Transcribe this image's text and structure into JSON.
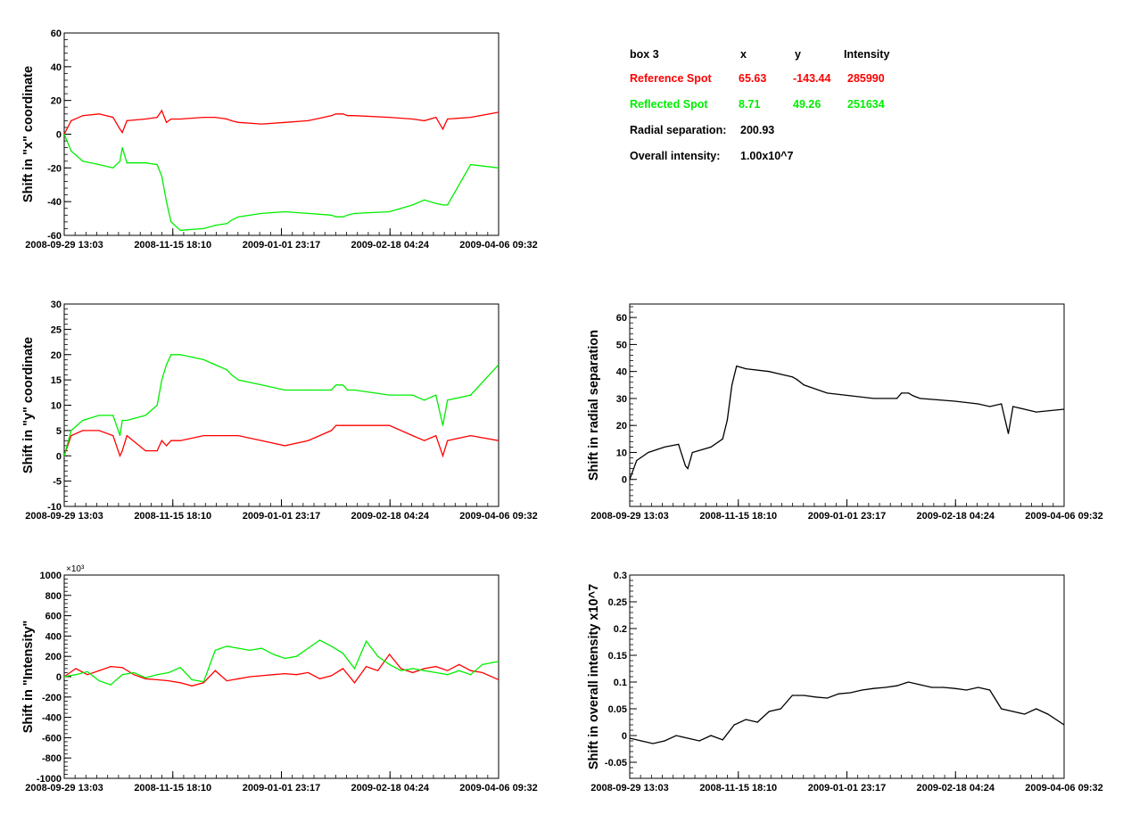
{
  "info_box": {
    "title": "box 3",
    "col_x": "x",
    "col_y": "y",
    "col_intensity": "Intensity",
    "reference": {
      "label": "Reference Spot",
      "x": "65.63",
      "y": "-143.44",
      "intensity": "285990"
    },
    "reflected": {
      "label": "Reflected Spot",
      "x": "8.71",
      "y": "49.26",
      "intensity": "251634"
    },
    "radial_label": "Radial separation:",
    "radial_value": "200.93",
    "overall_label": "Overall intensity:",
    "overall_value": "1.00x10^7"
  },
  "colors": {
    "reference": "#ff0000",
    "reflected": "#00ee00",
    "single": "#000000"
  },
  "chart_data": [
    {
      "id": "x-shift",
      "type": "line",
      "ylabel": "Shift in \"x\" coordinate",
      "ylim": [
        -60,
        60
      ],
      "yticks": [
        -60,
        -40,
        -20,
        0,
        20,
        40,
        60
      ],
      "ytick_labels": [
        "-60",
        "-40",
        "-20",
        "0",
        "20",
        "40",
        "60"
      ],
      "x_dates": [
        "2008-09-29 13:03",
        "2008-11-15 18:10",
        "2009-01-01 23:17",
        "2009-02-18 04:24",
        "2009-04-06 09:32"
      ],
      "x": [
        0,
        3,
        8,
        15,
        21,
        24,
        25,
        27,
        35,
        40,
        42,
        44,
        46,
        50,
        60,
        65,
        70,
        72,
        75,
        85,
        95,
        105,
        115,
        117,
        120,
        122,
        125,
        140,
        150,
        155,
        160,
        163,
        165,
        175,
        187
      ],
      "series": [
        {
          "name": "Reference Spot",
          "color": "#ff0000",
          "values": [
            0,
            8,
            11,
            12,
            10,
            3,
            1,
            8,
            9,
            10,
            14,
            7,
            9,
            9,
            10,
            10,
            9,
            8,
            7,
            6,
            7,
            8,
            11,
            12,
            12,
            11,
            11,
            10,
            9,
            8,
            10,
            3,
            9,
            10,
            13
          ]
        },
        {
          "name": "Reflected Spot",
          "color": "#00ee00",
          "values": [
            0,
            -10,
            -16,
            -18,
            -20,
            -16,
            -8,
            -17,
            -17,
            -18,
            -25,
            -40,
            -52,
            -57,
            -56,
            -54,
            -53,
            -51,
            -49,
            -47,
            -46,
            -47,
            -48,
            -49,
            -49,
            -48,
            -47,
            -46,
            -42,
            -39,
            -41,
            -42,
            -42,
            -18,
            -20
          ]
        }
      ]
    },
    {
      "id": "y-shift",
      "type": "line",
      "ylabel": "Shift in \"y\" coordinate",
      "ylim": [
        -10,
        30
      ],
      "yticks": [
        -10,
        -5,
        0,
        5,
        10,
        15,
        20,
        25,
        30
      ],
      "ytick_labels": [
        "-10",
        "-5",
        "0",
        "5",
        "10",
        "15",
        "20",
        "25",
        "30"
      ],
      "x_dates": [
        "2008-09-29 13:03",
        "2008-11-15 18:10",
        "2009-01-01 23:17",
        "2009-02-18 04:24",
        "2009-04-06 09:32"
      ],
      "x": [
        0,
        3,
        8,
        15,
        21,
        24,
        25,
        27,
        35,
        40,
        42,
        44,
        46,
        50,
        60,
        65,
        70,
        72,
        75,
        85,
        95,
        105,
        115,
        117,
        120,
        122,
        125,
        140,
        150,
        155,
        160,
        163,
        165,
        175,
        187
      ],
      "series": [
        {
          "name": "Reference Spot",
          "color": "#ff0000",
          "values": [
            0,
            4,
            5,
            5,
            4,
            0,
            1,
            4,
            1,
            1,
            3,
            2,
            3,
            3,
            4,
            4,
            4,
            4,
            4,
            3,
            2,
            3,
            5,
            6,
            6,
            6,
            6,
            6,
            4,
            3,
            4,
            0,
            3,
            4,
            3
          ]
        },
        {
          "name": "Reflected Spot",
          "color": "#00ee00",
          "values": [
            0,
            5,
            7,
            8,
            8,
            4,
            7,
            7,
            8,
            10,
            15,
            18,
            20,
            20,
            19,
            18,
            17,
            16,
            15,
            14,
            13,
            13,
            13,
            14,
            14,
            13,
            13,
            12,
            12,
            11,
            12,
            6,
            11,
            12,
            18
          ]
        }
      ]
    },
    {
      "id": "intensity-shift",
      "type": "line",
      "ylabel": "Shift in \"Intensity\"",
      "exponent": "×10³",
      "ylim": [
        -1000,
        1000
      ],
      "yticks": [
        -1000,
        -800,
        -600,
        -400,
        -200,
        0,
        200,
        400,
        600,
        800,
        1000
      ],
      "ytick_labels": [
        "-1000",
        "-800",
        "-600",
        "-400",
        "-200",
        "0",
        "200",
        "400",
        "600",
        "800",
        "1000"
      ],
      "x_dates": [
        "2008-09-29 13:03",
        "2008-11-15 18:10",
        "2009-01-01 23:17",
        "2009-02-18 04:24",
        "2009-04-06 09:32"
      ],
      "x": [
        0,
        5,
        10,
        15,
        20,
        25,
        30,
        35,
        40,
        45,
        50,
        55,
        60,
        65,
        70,
        75,
        80,
        85,
        90,
        95,
        100,
        105,
        110,
        115,
        120,
        125,
        130,
        135,
        140,
        145,
        150,
        155,
        160,
        165,
        170,
        175,
        180,
        187
      ],
      "series": [
        {
          "name": "Reference Spot",
          "color": "#ff0000",
          "values": [
            0,
            80,
            20,
            60,
            100,
            90,
            20,
            -20,
            -30,
            -40,
            -60,
            -90,
            -60,
            60,
            -40,
            -20,
            0,
            10,
            20,
            30,
            20,
            40,
            -20,
            10,
            80,
            -60,
            100,
            60,
            220,
            80,
            40,
            80,
            100,
            60,
            120,
            60,
            40,
            -30
          ]
        },
        {
          "name": "Reflected Spot",
          "color": "#00ee00",
          "values": [
            0,
            20,
            50,
            -40,
            -80,
            20,
            40,
            -10,
            20,
            40,
            90,
            -30,
            -50,
            260,
            300,
            280,
            260,
            280,
            220,
            180,
            200,
            280,
            360,
            300,
            230,
            80,
            350,
            200,
            120,
            60,
            80,
            60,
            40,
            20,
            60,
            20,
            120,
            150
          ]
        }
      ]
    },
    {
      "id": "radial-shift",
      "type": "line",
      "ylabel": "Shift in radial separation",
      "ylim": [
        -10,
        65
      ],
      "yticks": [
        0,
        10,
        20,
        30,
        40,
        50,
        60
      ],
      "ytick_labels": [
        "0",
        "10",
        "20",
        "30",
        "40",
        "50",
        "60"
      ],
      "x_dates": [
        "2008-09-29 13:03",
        "2008-11-15 18:10",
        "2009-01-01 23:17",
        "2009-02-18 04:24",
        "2009-04-06 09:32"
      ],
      "x": [
        0,
        3,
        8,
        15,
        21,
        24,
        25,
        27,
        35,
        40,
        42,
        44,
        46,
        50,
        60,
        65,
        70,
        72,
        75,
        85,
        95,
        105,
        115,
        117,
        120,
        122,
        125,
        140,
        150,
        155,
        160,
        163,
        165,
        175,
        187
      ],
      "series": [
        {
          "name": "",
          "color": "#000000",
          "values": [
            0,
            7,
            10,
            12,
            13,
            5,
            4,
            10,
            12,
            15,
            22,
            35,
            42,
            41,
            40,
            39,
            38,
            37,
            35,
            32,
            31,
            30,
            30,
            32,
            32,
            31,
            30,
            29,
            28,
            27,
            28,
            17,
            27,
            25,
            26
          ]
        }
      ]
    },
    {
      "id": "overall-intensity-shift",
      "type": "line",
      "ylabel": "Shift in overall intensity x10^7",
      "ylim": [
        -0.08,
        0.3
      ],
      "yticks": [
        -0.05,
        0,
        0.05,
        0.1,
        0.15,
        0.2,
        0.25,
        0.3
      ],
      "ytick_labels": [
        "-0.05",
        "0",
        "0.05",
        "0.1",
        "0.15",
        "0.2",
        "0.25",
        "0.3"
      ],
      "x_dates": [
        "2008-09-29 13:03",
        "2008-11-15 18:10",
        "2009-01-01 23:17",
        "2009-02-18 04:24",
        "2009-04-06 09:32"
      ],
      "x": [
        0,
        5,
        10,
        15,
        20,
        25,
        30,
        35,
        40,
        45,
        50,
        55,
        60,
        65,
        70,
        75,
        80,
        85,
        90,
        95,
        100,
        105,
        110,
        115,
        120,
        125,
        130,
        135,
        140,
        145,
        150,
        155,
        160,
        165,
        170,
        175,
        180,
        187
      ],
      "series": [
        {
          "name": "",
          "color": "#000000",
          "values": [
            -0.005,
            -0.01,
            -0.015,
            -0.01,
            0.0,
            -0.005,
            -0.01,
            0.0,
            -0.008,
            0.02,
            0.03,
            0.025,
            0.045,
            0.05,
            0.075,
            0.075,
            0.072,
            0.07,
            0.078,
            0.08,
            0.085,
            0.088,
            0.09,
            0.093,
            0.1,
            0.095,
            0.09,
            0.09,
            0.088,
            0.085,
            0.09,
            0.085,
            0.05,
            0.045,
            0.04,
            0.05,
            0.04,
            0.02
          ]
        }
      ]
    }
  ]
}
